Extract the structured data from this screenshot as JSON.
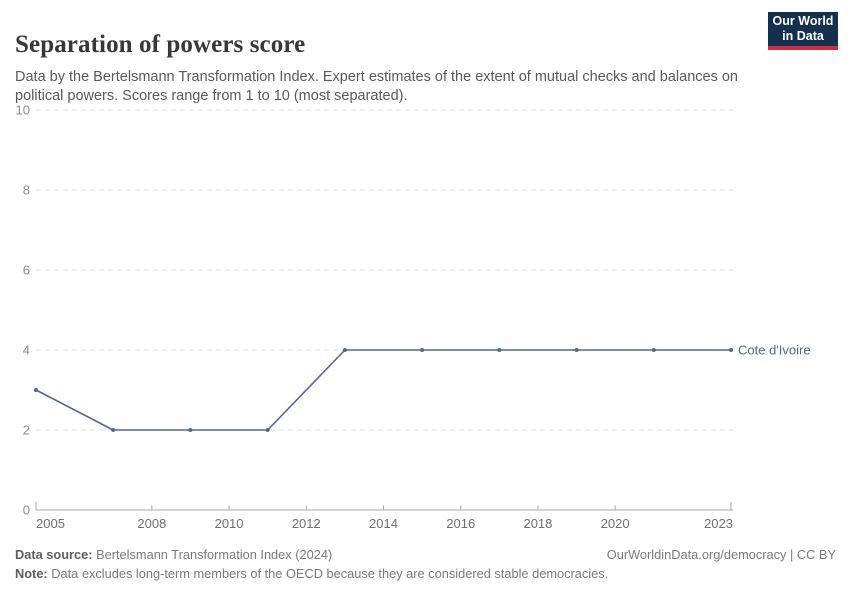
{
  "header": {
    "title": "Separation of powers score",
    "subtitle": "Data by the Bertelsmann Transformation Index. Expert estimates of the extent of mutual checks and balances on political powers. Scores range from 1 to 10 (most separated).",
    "logo": {
      "line1": "Our World",
      "line2": "in Data"
    }
  },
  "chart_data": {
    "type": "line",
    "title": "Separation of powers score",
    "xlabel": "",
    "ylabel": "",
    "xlim": [
      2005,
      2023
    ],
    "ylim": [
      0,
      10
    ],
    "x_ticks": [
      2005,
      2008,
      2010,
      2012,
      2014,
      2016,
      2018,
      2020,
      2023
    ],
    "y_ticks": [
      0,
      2,
      4,
      6,
      8,
      10
    ],
    "grid": "horizontal-dashed",
    "legend_position": "line-end-label",
    "series": [
      {
        "name": "Cote d'Ivoire",
        "color": "#4c6a9c",
        "x": [
          2005,
          2007,
          2009,
          2011,
          2013,
          2015,
          2017,
          2019,
          2021,
          2023
        ],
        "values": [
          3,
          2,
          2,
          2,
          4,
          4,
          4,
          4,
          4,
          4
        ]
      }
    ]
  },
  "footer": {
    "source_label": "Data source:",
    "source_text": " Bertelsmann Transformation Index (2024)",
    "rights": "OurWorldinData.org/democracy | CC BY",
    "note_label": "Note:",
    "note_text": " Data excludes long-term members of the OECD because they are considered stable democracies."
  },
  "colors": {
    "series_blue": "#4c6a9c",
    "grid": "#e0e0e0",
    "axis": "#a8a8a8",
    "y_tick_text": "#8f8f8f",
    "x_tick_text": "#707070",
    "logo_bg": "#15304f",
    "logo_stripe": "#cf2e41"
  }
}
